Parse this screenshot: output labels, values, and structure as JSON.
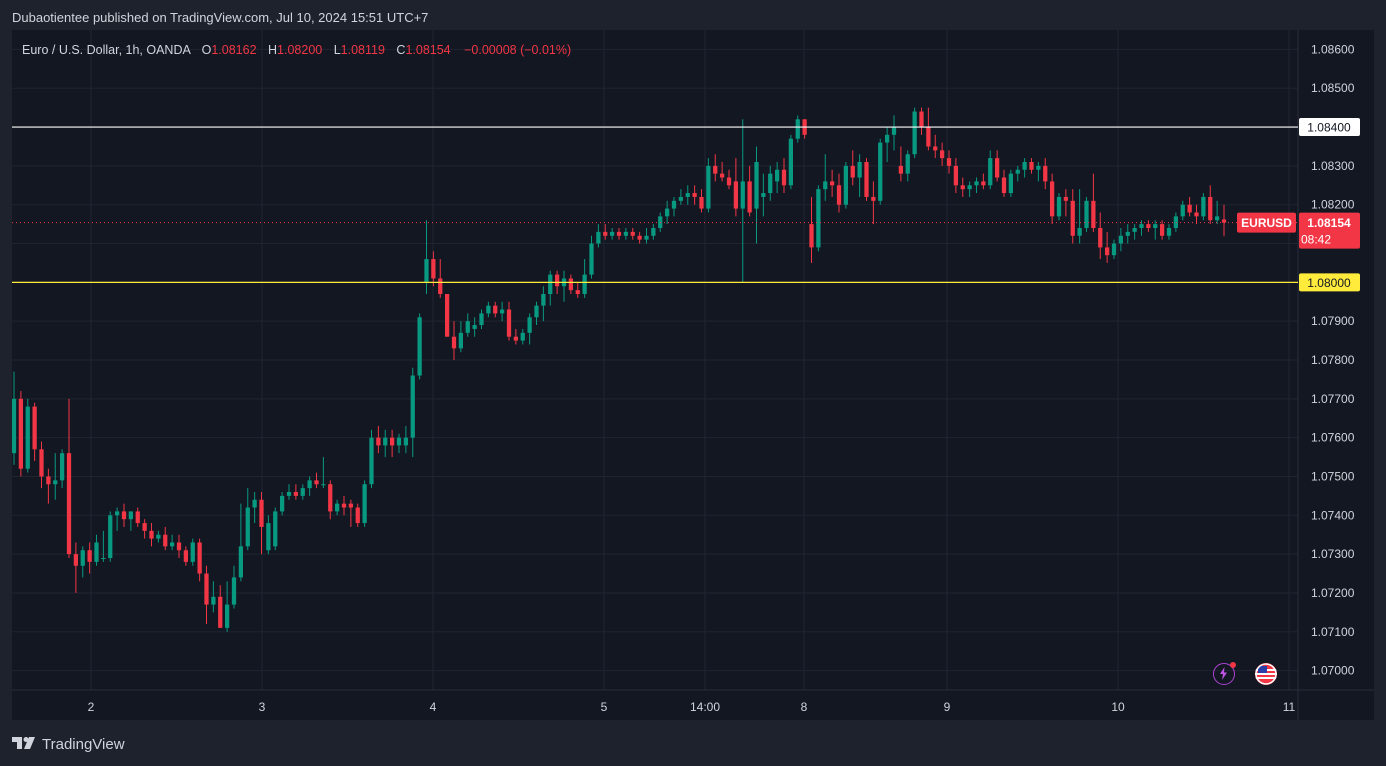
{
  "header": {
    "published": "Dubaotientee published on TradingView.com, Jul 10, 2024 15:51 UTC+7"
  },
  "legend": {
    "symbol": "Euro / U.S. Dollar, 1h, OANDA",
    "open_key": "O",
    "open": "1.08162",
    "high_key": "H",
    "high": "1.08200",
    "low_key": "L",
    "low": "1.08119",
    "close_key": "C",
    "close": "1.08154",
    "change": "−0.00008 (−0.01%)"
  },
  "price_tag": {
    "symbol": "EURUSD",
    "price": "1.08154",
    "countdown": "08:42"
  },
  "levels": [
    {
      "label": "1.08400",
      "value": 1.084,
      "color": "#ffffff"
    },
    {
      "label": "1.08000",
      "value": 1.08,
      "color": "#ffeb3b"
    }
  ],
  "footer": {
    "brand": "TradingView"
  },
  "colors": {
    "up": "#089981",
    "down": "#f23645",
    "background": "#131722"
  },
  "icons": [
    "lightning-icon",
    "us-flag-icon",
    "tradingview-logo-icon"
  ],
  "chart_data": {
    "type": "candlestick",
    "title": "Euro / U.S. Dollar, 1h, OANDA",
    "ylim": [
      1.0695,
      1.0865
    ],
    "y_ticks": [
      "1.08600",
      "1.08500",
      "1.08400",
      "1.08300",
      "1.08200",
      "1.08100",
      "1.08000",
      "1.07900",
      "1.07800",
      "1.07700",
      "1.07600",
      "1.07500",
      "1.07400",
      "1.07300",
      "1.07200",
      "1.07100",
      "1.07000"
    ],
    "x_ticks": [
      "2",
      "3",
      "4",
      "5",
      "14:00",
      "8",
      "9",
      "10",
      "11"
    ],
    "grid": true,
    "last_price": 1.08154,
    "candles": [
      {
        "o": 1.0756,
        "h": 1.0777,
        "l": 1.0753,
        "c": 1.077
      },
      {
        "o": 1.077,
        "h": 1.0772,
        "l": 1.075,
        "c": 1.0752
      },
      {
        "o": 1.0752,
        "h": 1.077,
        "l": 1.0751,
        "c": 1.0768
      },
      {
        "o": 1.0768,
        "h": 1.0769,
        "l": 1.0754,
        "c": 1.0757
      },
      {
        "o": 1.0757,
        "h": 1.0759,
        "l": 1.0747,
        "c": 1.075
      },
      {
        "o": 1.075,
        "h": 1.0752,
        "l": 1.0743,
        "c": 1.0748
      },
      {
        "o": 1.0748,
        "h": 1.0756,
        "l": 1.0744,
        "c": 1.0749
      },
      {
        "o": 1.0749,
        "h": 1.0757,
        "l": 1.0747,
        "c": 1.0756
      },
      {
        "o": 1.0756,
        "h": 1.077,
        "l": 1.0729,
        "c": 1.073
      },
      {
        "o": 1.073,
        "h": 1.0733,
        "l": 1.072,
        "c": 1.0727
      },
      {
        "o": 1.0727,
        "h": 1.0732,
        "l": 1.0724,
        "c": 1.0731
      },
      {
        "o": 1.0731,
        "h": 1.0733,
        "l": 1.0725,
        "c": 1.0728
      },
      {
        "o": 1.0728,
        "h": 1.0735,
        "l": 1.0727,
        "c": 1.0733
      },
      {
        "o": 1.0729,
        "h": 1.0736,
        "l": 1.0728,
        "c": 1.0729
      },
      {
        "o": 1.0729,
        "h": 1.0741,
        "l": 1.0728,
        "c": 1.074
      },
      {
        "o": 1.074,
        "h": 1.0742,
        "l": 1.0736,
        "c": 1.0741
      },
      {
        "o": 1.0741,
        "h": 1.0743,
        "l": 1.0737,
        "c": 1.0739
      },
      {
        "o": 1.0739,
        "h": 1.0741,
        "l": 1.0736,
        "c": 1.0741
      },
      {
        "o": 1.0741,
        "h": 1.0742,
        "l": 1.0737,
        "c": 1.0738
      },
      {
        "o": 1.0738,
        "h": 1.0739,
        "l": 1.0734,
        "c": 1.0736
      },
      {
        "o": 1.0736,
        "h": 1.0738,
        "l": 1.0732,
        "c": 1.0734
      },
      {
        "o": 1.0734,
        "h": 1.0736,
        "l": 1.0733,
        "c": 1.0735
      },
      {
        "o": 1.0735,
        "h": 1.0737,
        "l": 1.0731,
        "c": 1.0732
      },
      {
        "o": 1.0732,
        "h": 1.0735,
        "l": 1.0731,
        "c": 1.0733
      },
      {
        "o": 1.0733,
        "h": 1.0735,
        "l": 1.0729,
        "c": 1.0731
      },
      {
        "o": 1.0731,
        "h": 1.0732,
        "l": 1.0727,
        "c": 1.0728
      },
      {
        "o": 1.0728,
        "h": 1.0734,
        "l": 1.0727,
        "c": 1.0733
      },
      {
        "o": 1.0733,
        "h": 1.0734,
        "l": 1.0723,
        "c": 1.0725
      },
      {
        "o": 1.0725,
        "h": 1.0727,
        "l": 1.0712,
        "c": 1.0717
      },
      {
        "o": 1.0717,
        "h": 1.0723,
        "l": 1.0715,
        "c": 1.0719
      },
      {
        "o": 1.0719,
        "h": 1.0722,
        "l": 1.0711,
        "c": 1.0711
      },
      {
        "o": 1.0711,
        "h": 1.0723,
        "l": 1.071,
        "c": 1.0717
      },
      {
        "o": 1.0717,
        "h": 1.0727,
        "l": 1.0716,
        "c": 1.0724
      },
      {
        "o": 1.0724,
        "h": 1.0743,
        "l": 1.0723,
        "c": 1.0732
      },
      {
        "o": 1.0732,
        "h": 1.0747,
        "l": 1.0731,
        "c": 1.0742
      },
      {
        "o": 1.0742,
        "h": 1.0746,
        "l": 1.0738,
        "c": 1.0744
      },
      {
        "o": 1.0744,
        "h": 1.0746,
        "l": 1.073,
        "c": 1.0737
      },
      {
        "o": 1.0731,
        "h": 1.074,
        "l": 1.073,
        "c": 1.0738
      },
      {
        "o": 1.0732,
        "h": 1.0742,
        "l": 1.0731,
        "c": 1.0741
      },
      {
        "o": 1.0741,
        "h": 1.0746,
        "l": 1.074,
        "c": 1.0745
      },
      {
        "o": 1.0745,
        "h": 1.0748,
        "l": 1.0744,
        "c": 1.0746
      },
      {
        "o": 1.0746,
        "h": 1.0748,
        "l": 1.0744,
        "c": 1.0745
      },
      {
        "o": 1.0745,
        "h": 1.0748,
        "l": 1.0744,
        "c": 1.0747
      },
      {
        "o": 1.0747,
        "h": 1.075,
        "l": 1.0745,
        "c": 1.0749
      },
      {
        "o": 1.0749,
        "h": 1.0751,
        "l": 1.0747,
        "c": 1.0748
      },
      {
        "o": 1.0748,
        "h": 1.0755,
        "l": 1.0747,
        "c": 1.0748
      },
      {
        "o": 1.0748,
        "h": 1.0749,
        "l": 1.0739,
        "c": 1.0741
      },
      {
        "o": 1.0741,
        "h": 1.0744,
        "l": 1.074,
        "c": 1.0743
      },
      {
        "o": 1.0743,
        "h": 1.0745,
        "l": 1.074,
        "c": 1.0742
      },
      {
        "o": 1.0743,
        "h": 1.0744,
        "l": 1.0737,
        "c": 1.0742
      },
      {
        "o": 1.0742,
        "h": 1.0743,
        "l": 1.0737,
        "c": 1.0738
      },
      {
        "o": 1.0738,
        "h": 1.0749,
        "l": 1.0737,
        "c": 1.0748
      },
      {
        "o": 1.0748,
        "h": 1.0762,
        "l": 1.0747,
        "c": 1.076
      },
      {
        "o": 1.076,
        "h": 1.0763,
        "l": 1.0756,
        "c": 1.0758
      },
      {
        "o": 1.0758,
        "h": 1.0762,
        "l": 1.0755,
        "c": 1.076
      },
      {
        "o": 1.076,
        "h": 1.0762,
        "l": 1.0755,
        "c": 1.0758
      },
      {
        "o": 1.0758,
        "h": 1.0761,
        "l": 1.0756,
        "c": 1.076
      },
      {
        "o": 1.0758,
        "h": 1.0763,
        "l": 1.0756,
        "c": 1.076
      },
      {
        "o": 1.076,
        "h": 1.0778,
        "l": 1.0755,
        "c": 1.0776
      },
      {
        "o": 1.0776,
        "h": 1.0792,
        "l": 1.0775,
        "c": 1.0791
      },
      {
        "o": 1.08,
        "h": 1.0816,
        "l": 1.0797,
        "c": 1.0806
      },
      {
        "o": 1.0806,
        "h": 1.0808,
        "l": 1.0799,
        "c": 1.0801
      },
      {
        "o": 1.0801,
        "h": 1.0806,
        "l": 1.0796,
        "c": 1.0797
      },
      {
        "o": 1.0797,
        "h": 1.0797,
        "l": 1.0786,
        "c": 1.0786
      },
      {
        "o": 1.0786,
        "h": 1.079,
        "l": 1.078,
        "c": 1.0783
      },
      {
        "o": 1.0783,
        "h": 1.079,
        "l": 1.0782,
        "c": 1.0787
      },
      {
        "o": 1.0787,
        "h": 1.0792,
        "l": 1.0786,
        "c": 1.079
      },
      {
        "o": 1.0788,
        "h": 1.0791,
        "l": 1.0786,
        "c": 1.0789
      },
      {
        "o": 1.0789,
        "h": 1.0793,
        "l": 1.0788,
        "c": 1.0792
      },
      {
        "o": 1.0792,
        "h": 1.0795,
        "l": 1.0791,
        "c": 1.0794
      },
      {
        "o": 1.0794,
        "h": 1.0795,
        "l": 1.0791,
        "c": 1.0792
      },
      {
        "o": 1.0792,
        "h": 1.0795,
        "l": 1.079,
        "c": 1.0793
      },
      {
        "o": 1.0793,
        "h": 1.0795,
        "l": 1.0785,
        "c": 1.0786
      },
      {
        "o": 1.0786,
        "h": 1.0788,
        "l": 1.0784,
        "c": 1.0785
      },
      {
        "o": 1.0785,
        "h": 1.0788,
        "l": 1.0784,
        "c": 1.0787
      },
      {
        "o": 1.0787,
        "h": 1.0792,
        "l": 1.0784,
        "c": 1.0791
      },
      {
        "o": 1.0791,
        "h": 1.0795,
        "l": 1.0789,
        "c": 1.0794
      },
      {
        "o": 1.0794,
        "h": 1.0799,
        "l": 1.079,
        "c": 1.0797
      },
      {
        "o": 1.0797,
        "h": 1.0803,
        "l": 1.0794,
        "c": 1.0802
      },
      {
        "o": 1.0802,
        "h": 1.0803,
        "l": 1.0797,
        "c": 1.0799
      },
      {
        "o": 1.0799,
        "h": 1.0803,
        "l": 1.0795,
        "c": 1.0801
      },
      {
        "o": 1.0801,
        "h": 1.0802,
        "l": 1.0797,
        "c": 1.0798
      },
      {
        "o": 1.0798,
        "h": 1.08,
        "l": 1.0796,
        "c": 1.0797
      },
      {
        "o": 1.0797,
        "h": 1.0806,
        "l": 1.0796,
        "c": 1.0802
      },
      {
        "o": 1.0802,
        "h": 1.0812,
        "l": 1.0801,
        "c": 1.081
      },
      {
        "o": 1.081,
        "h": 1.0815,
        "l": 1.0809,
        "c": 1.0813
      },
      {
        "o": 1.0813,
        "h": 1.0815,
        "l": 1.0811,
        "c": 1.0812
      },
      {
        "o": 1.0812,
        "h": 1.0814,
        "l": 1.0811,
        "c": 1.0813
      },
      {
        "o": 1.0813,
        "h": 1.0814,
        "l": 1.0811,
        "c": 1.0812
      },
      {
        "o": 1.0812,
        "h": 1.0814,
        "l": 1.0811,
        "c": 1.0813
      },
      {
        "o": 1.0813,
        "h": 1.0814,
        "l": 1.0811,
        "c": 1.0812
      },
      {
        "o": 1.0812,
        "h": 1.0813,
        "l": 1.081,
        "c": 1.0811
      },
      {
        "o": 1.0811,
        "h": 1.0814,
        "l": 1.081,
        "c": 1.0812
      },
      {
        "o": 1.0812,
        "h": 1.0815,
        "l": 1.0811,
        "c": 1.0814
      },
      {
        "o": 1.0814,
        "h": 1.0818,
        "l": 1.0813,
        "c": 1.0817
      },
      {
        "o": 1.0817,
        "h": 1.0821,
        "l": 1.0815,
        "c": 1.0819
      },
      {
        "o": 1.0819,
        "h": 1.0822,
        "l": 1.0817,
        "c": 1.0821
      },
      {
        "o": 1.0821,
        "h": 1.0824,
        "l": 1.082,
        "c": 1.0822
      },
      {
        "o": 1.0822,
        "h": 1.0825,
        "l": 1.082,
        "c": 1.0823
      },
      {
        "o": 1.0823,
        "h": 1.0825,
        "l": 1.082,
        "c": 1.0822
      },
      {
        "o": 1.0822,
        "h": 1.0824,
        "l": 1.0818,
        "c": 1.0819
      },
      {
        "o": 1.0819,
        "h": 1.0832,
        "l": 1.0818,
        "c": 1.083
      },
      {
        "o": 1.083,
        "h": 1.0833,
        "l": 1.0826,
        "c": 1.0828
      },
      {
        "o": 1.0828,
        "h": 1.0831,
        "l": 1.0826,
        "c": 1.0827
      },
      {
        "o": 1.0827,
        "h": 1.0829,
        "l": 1.0824,
        "c": 1.0825
      },
      {
        "o": 1.0826,
        "h": 1.0832,
        "l": 1.0817,
        "c": 1.0819
      },
      {
        "o": 1.0819,
        "h": 1.0842,
        "l": 1.08,
        "c": 1.0826
      },
      {
        "o": 1.0826,
        "h": 1.083,
        "l": 1.0817,
        "c": 1.0818
      },
      {
        "o": 1.0819,
        "h": 1.0835,
        "l": 1.081,
        "c": 1.0831
      },
      {
        "o": 1.0822,
        "h": 1.0828,
        "l": 1.0817,
        "c": 1.0823
      },
      {
        "o": 1.0823,
        "h": 1.083,
        "l": 1.0821,
        "c": 1.0828
      },
      {
        "o": 1.0826,
        "h": 1.0831,
        "l": 1.0823,
        "c": 1.0829
      },
      {
        "o": 1.0829,
        "h": 1.0832,
        "l": 1.0823,
        "c": 1.0825
      },
      {
        "o": 1.0825,
        "h": 1.0838,
        "l": 1.0824,
        "c": 1.0837
      },
      {
        "o": 1.0837,
        "h": 1.0843,
        "l": 1.0836,
        "c": 1.0842
      },
      {
        "o": 1.0842,
        "h": 1.0842,
        "l": 1.0837,
        "c": 1.0838
      },
      {
        "o": 1.0815,
        "h": 1.0822,
        "l": 1.0805,
        "c": 1.0809
      },
      {
        "o": 1.0809,
        "h": 1.0825,
        "l": 1.0808,
        "c": 1.0824
      },
      {
        "o": 1.0824,
        "h": 1.0833,
        "l": 1.0821,
        "c": 1.0826
      },
      {
        "o": 1.0826,
        "h": 1.0829,
        "l": 1.0822,
        "c": 1.0825
      },
      {
        "o": 1.0825,
        "h": 1.0828,
        "l": 1.0818,
        "c": 1.082
      },
      {
        "o": 1.082,
        "h": 1.0831,
        "l": 1.0819,
        "c": 1.083
      },
      {
        "o": 1.083,
        "h": 1.0834,
        "l": 1.0825,
        "c": 1.0827
      },
      {
        "o": 1.0827,
        "h": 1.0833,
        "l": 1.0822,
        "c": 1.0831
      },
      {
        "o": 1.0831,
        "h": 1.0832,
        "l": 1.0821,
        "c": 1.0822
      },
      {
        "o": 1.0822,
        "h": 1.0826,
        "l": 1.0815,
        "c": 1.0821
      },
      {
        "o": 1.0821,
        "h": 1.0837,
        "l": 1.082,
        "c": 1.0836
      },
      {
        "o": 1.0836,
        "h": 1.084,
        "l": 1.0831,
        "c": 1.0838
      },
      {
        "o": 1.0838,
        "h": 1.0843,
        "l": 1.0834,
        "c": 1.084
      },
      {
        "o": 1.083,
        "h": 1.0835,
        "l": 1.0826,
        "c": 1.0828
      },
      {
        "o": 1.0828,
        "h": 1.0834,
        "l": 1.0826,
        "c": 1.0833
      },
      {
        "o": 1.0833,
        "h": 1.0845,
        "l": 1.0832,
        "c": 1.0844
      },
      {
        "o": 1.0844,
        "h": 1.0845,
        "l": 1.0838,
        "c": 1.084
      },
      {
        "o": 1.084,
        "h": 1.0845,
        "l": 1.0834,
        "c": 1.0835
      },
      {
        "o": 1.0835,
        "h": 1.0838,
        "l": 1.0832,
        "c": 1.0834
      },
      {
        "o": 1.0834,
        "h": 1.0836,
        "l": 1.083,
        "c": 1.0832
      },
      {
        "o": 1.0832,
        "h": 1.0834,
        "l": 1.0828,
        "c": 1.083
      },
      {
        "o": 1.083,
        "h": 1.0832,
        "l": 1.0823,
        "c": 1.0825
      },
      {
        "o": 1.0825,
        "h": 1.0827,
        "l": 1.0822,
        "c": 1.0824
      },
      {
        "o": 1.0824,
        "h": 1.0826,
        "l": 1.0822,
        "c": 1.0825
      },
      {
        "o": 1.0825,
        "h": 1.0827,
        "l": 1.0823,
        "c": 1.0826
      },
      {
        "o": 1.0826,
        "h": 1.0828,
        "l": 1.0824,
        "c": 1.0825
      },
      {
        "o": 1.0825,
        "h": 1.0834,
        "l": 1.0824,
        "c": 1.0832
      },
      {
        "o": 1.0832,
        "h": 1.0834,
        "l": 1.0826,
        "c": 1.0827
      },
      {
        "o": 1.0827,
        "h": 1.0829,
        "l": 1.0822,
        "c": 1.0823
      },
      {
        "o": 1.0823,
        "h": 1.0829,
        "l": 1.0822,
        "c": 1.0828
      },
      {
        "o": 1.0828,
        "h": 1.083,
        "l": 1.0826,
        "c": 1.0829
      },
      {
        "o": 1.0829,
        "h": 1.0832,
        "l": 1.0827,
        "c": 1.0831
      },
      {
        "o": 1.0831,
        "h": 1.0832,
        "l": 1.0828,
        "c": 1.0829
      },
      {
        "o": 1.0829,
        "h": 1.0831,
        "l": 1.0826,
        "c": 1.083
      },
      {
        "o": 1.083,
        "h": 1.0832,
        "l": 1.0824,
        "c": 1.0826
      },
      {
        "o": 1.0826,
        "h": 1.0828,
        "l": 1.0815,
        "c": 1.0817
      },
      {
        "o": 1.0817,
        "h": 1.0823,
        "l": 1.0816,
        "c": 1.0822
      },
      {
        "o": 1.0822,
        "h": 1.0824,
        "l": 1.0817,
        "c": 1.0821
      },
      {
        "o": 1.0821,
        "h": 1.0824,
        "l": 1.081,
        "c": 1.0812
      },
      {
        "o": 1.0812,
        "h": 1.0824,
        "l": 1.081,
        "c": 1.0814
      },
      {
        "o": 1.0814,
        "h": 1.0822,
        "l": 1.0813,
        "c": 1.0821
      },
      {
        "o": 1.0821,
        "h": 1.0828,
        "l": 1.0813,
        "c": 1.0814
      },
      {
        "o": 1.0814,
        "h": 1.0818,
        "l": 1.0806,
        "c": 1.0809
      },
      {
        "o": 1.0809,
        "h": 1.0813,
        "l": 1.0805,
        "c": 1.0807
      },
      {
        "o": 1.0807,
        "h": 1.0811,
        "l": 1.0806,
        "c": 1.081
      },
      {
        "o": 1.081,
        "h": 1.0814,
        "l": 1.0808,
        "c": 1.0812
      },
      {
        "o": 1.0812,
        "h": 1.0815,
        "l": 1.081,
        "c": 1.0813
      },
      {
        "o": 1.0813,
        "h": 1.0815,
        "l": 1.0811,
        "c": 1.0814
      },
      {
        "o": 1.0814,
        "h": 1.0816,
        "l": 1.0812,
        "c": 1.0815
      },
      {
        "o": 1.0815,
        "h": 1.0816,
        "l": 1.0813,
        "c": 1.0814
      },
      {
        "o": 1.0814,
        "h": 1.0816,
        "l": 1.0811,
        "c": 1.0815
      },
      {
        "o": 1.0815,
        "h": 1.0816,
        "l": 1.0811,
        "c": 1.0812
      },
      {
        "o": 1.0812,
        "h": 1.0815,
        "l": 1.0811,
        "c": 1.0814
      },
      {
        "o": 1.0814,
        "h": 1.0818,
        "l": 1.0813,
        "c": 1.0817
      },
      {
        "o": 1.0817,
        "h": 1.0821,
        "l": 1.0816,
        "c": 1.082
      },
      {
        "o": 1.082,
        "h": 1.0822,
        "l": 1.0817,
        "c": 1.0818
      },
      {
        "o": 1.0818,
        "h": 1.082,
        "l": 1.0815,
        "c": 1.0817
      },
      {
        "o": 1.0817,
        "h": 1.0823,
        "l": 1.0816,
        "c": 1.0822
      },
      {
        "o": 1.0822,
        "h": 1.0825,
        "l": 1.0815,
        "c": 1.0816
      },
      {
        "o": 1.0816,
        "h": 1.0821,
        "l": 1.0815,
        "c": 1.0817
      },
      {
        "o": 1.08162,
        "h": 1.082,
        "l": 1.08119,
        "c": 1.08154
      }
    ]
  }
}
